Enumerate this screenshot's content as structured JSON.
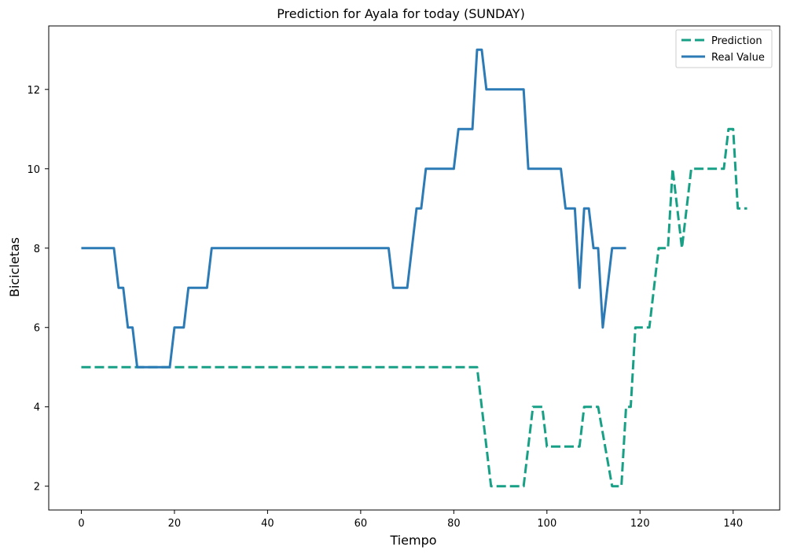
{
  "chart_data": {
    "type": "line",
    "title": "Prediction for Ayala for today (SUNDAY)",
    "xlabel": "Tiempo",
    "ylabel": "Bicicletas",
    "xlim": [
      -7,
      150
    ],
    "ylim": [
      1.4,
      13.6
    ],
    "xticks": [
      0,
      20,
      40,
      60,
      80,
      100,
      120,
      140
    ],
    "yticks": [
      2,
      4,
      6,
      8,
      10,
      12
    ],
    "grid": false,
    "legend_position": "top-right",
    "series": [
      {
        "name": "Prediction",
        "color": "#17a085",
        "style": "dashed",
        "points": [
          [
            0,
            5
          ],
          [
            85,
            5
          ],
          [
            88,
            2
          ],
          [
            95,
            2
          ],
          [
            97,
            4
          ],
          [
            99,
            4
          ],
          [
            100,
            3
          ],
          [
            107,
            3
          ],
          [
            108,
            4
          ],
          [
            111,
            4
          ],
          [
            114,
            2
          ],
          [
            116,
            2
          ],
          [
            117,
            4
          ],
          [
            118,
            4
          ],
          [
            119,
            6
          ],
          [
            122,
            6
          ],
          [
            124,
            8
          ],
          [
            126,
            8
          ],
          [
            127,
            10
          ],
          [
            129,
            8
          ],
          [
            131,
            10
          ],
          [
            138,
            10
          ],
          [
            139,
            11
          ],
          [
            140,
            11
          ],
          [
            141,
            9
          ],
          [
            143,
            9
          ]
        ]
      },
      {
        "name": "Real Value",
        "color": "#2c7bb6",
        "style": "solid",
        "points": [
          [
            0,
            8
          ],
          [
            7,
            8
          ],
          [
            8,
            7
          ],
          [
            9,
            7
          ],
          [
            10,
            6
          ],
          [
            11,
            6
          ],
          [
            12,
            5
          ],
          [
            19,
            5
          ],
          [
            20,
            6
          ],
          [
            22,
            6
          ],
          [
            23,
            7
          ],
          [
            27,
            7
          ],
          [
            28,
            8
          ],
          [
            66,
            8
          ],
          [
            67,
            7
          ],
          [
            70,
            7
          ],
          [
            72,
            9
          ],
          [
            73,
            9
          ],
          [
            74,
            10
          ],
          [
            80,
            10
          ],
          [
            81,
            11
          ],
          [
            84,
            11
          ],
          [
            85,
            13
          ],
          [
            86,
            13
          ],
          [
            87,
            12
          ],
          [
            95,
            12
          ],
          [
            96,
            10
          ],
          [
            103,
            10
          ],
          [
            104,
            9
          ],
          [
            106,
            9
          ],
          [
            107,
            7
          ],
          [
            108,
            9
          ],
          [
            109,
            9
          ],
          [
            110,
            8
          ],
          [
            111,
            8
          ],
          [
            112,
            6
          ],
          [
            114,
            8
          ],
          [
            117,
            8
          ]
        ]
      }
    ]
  }
}
